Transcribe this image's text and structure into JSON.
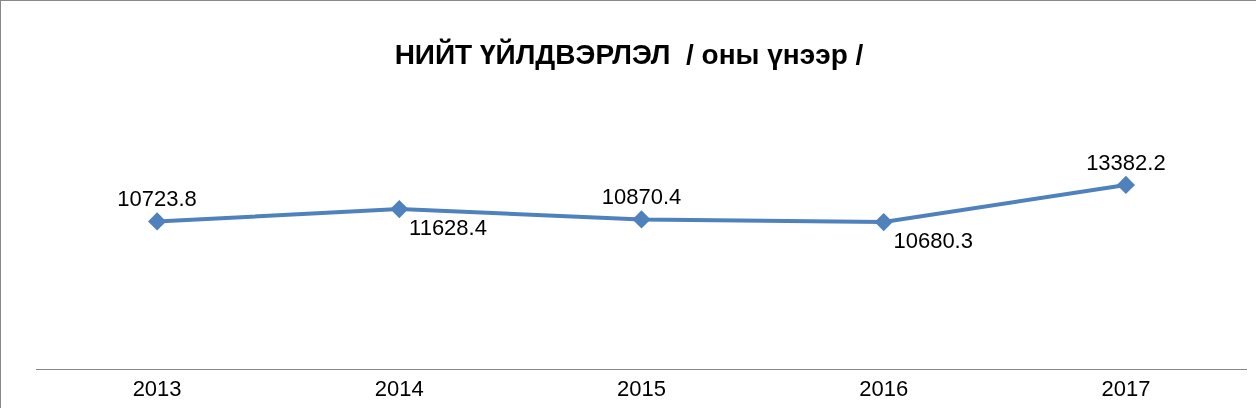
{
  "chart_data": {
    "type": "line",
    "title": "НИЙТ ҮЙЛДВЭРЛЭЛ  / оны үнээр /",
    "categories": [
      "2013",
      "2014",
      "2015",
      "2016",
      "2017"
    ],
    "series": [
      {
        "color": "#4f81bd",
        "values": [
          10723.8,
          11628.4,
          10870.4,
          10680.3,
          13382.2
        ]
      }
    ],
    "tick_labels": "x",
    "data_labels": true,
    "marker": "diamond",
    "grid": false,
    "legend": false
  }
}
